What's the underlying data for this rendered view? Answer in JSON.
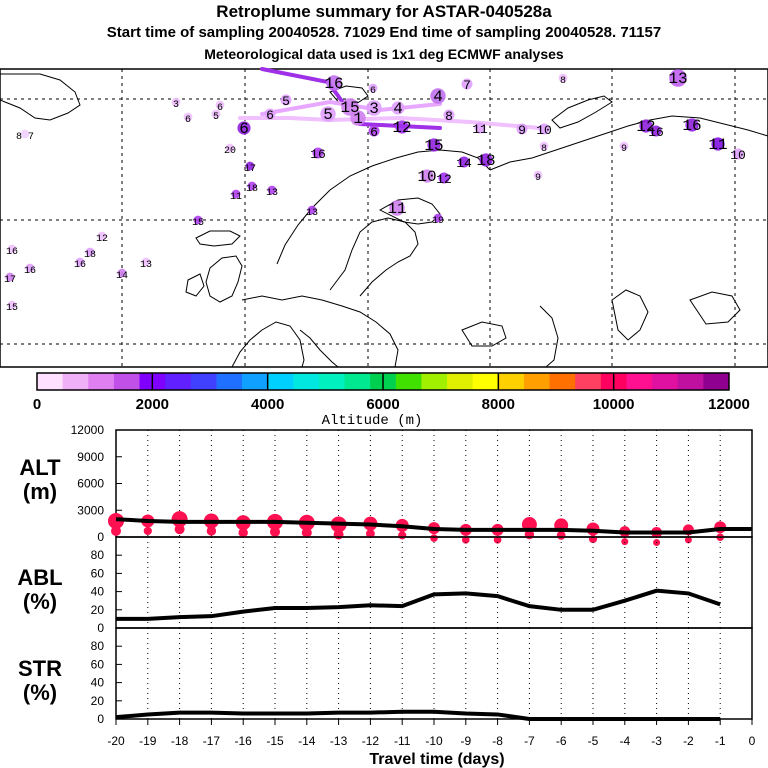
{
  "header": {
    "title": "Retroplume summary for ASTAR-040528a",
    "line2": "Start time of sampling 20040528. 71029     End time of sampling 20040528. 71157",
    "line3": "Meteorological data used is 1x1 deg ECMWF analyses"
  },
  "colorbar": {
    "ticks": [
      "0",
      "2000",
      "4000",
      "6000",
      "8000",
      "10000",
      "12000"
    ],
    "label": "Altitude (m)",
    "colors": [
      "#ffe0ff",
      "#f0b0f8",
      "#e080f0",
      "#c050e8",
      "#8000ff",
      "#6020ff",
      "#4040ff",
      "#2070ff",
      "#10a0ff",
      "#00d0ff",
      "#00e8e0",
      "#00f0c0",
      "#00e890",
      "#00d050",
      "#40e000",
      "#a0f000",
      "#e0f000",
      "#ffff00",
      "#ffd000",
      "#ffa000",
      "#ff7000",
      "#ff4060",
      "#ff0060",
      "#ff1090",
      "#e010a0",
      "#c010a0",
      "#900090"
    ]
  },
  "map_labels": [
    {
      "t": "16",
      "c": "#c070f0"
    },
    {
      "t": "6",
      "c": "#e0a0ff"
    },
    {
      "t": "4",
      "c": "#c070f0"
    },
    {
      "t": "7",
      "c": "#e0a0ff"
    },
    {
      "t": "8",
      "c": "#f0c0ff"
    },
    {
      "t": "13",
      "c": "#c060f0"
    },
    {
      "t": "3",
      "c": "#f0c0ff"
    },
    {
      "t": "5",
      "c": "#f0c0ff"
    },
    {
      "t": "6",
      "c": "#f0c0ff"
    },
    {
      "t": "5",
      "c": "#e0a0ff"
    },
    {
      "t": "15",
      "c": "#d080f0"
    },
    {
      "t": "3",
      "c": "#e0a0ff"
    },
    {
      "t": "4",
      "c": "#e0a0ff"
    },
    {
      "t": "6",
      "c": "#f0c0ff"
    },
    {
      "t": "6",
      "c": "#e0a0ff"
    },
    {
      "t": "5",
      "c": "#e0a0ff"
    },
    {
      "t": "1",
      "c": "#d080f0"
    },
    {
      "t": "8",
      "c": "#e0a0ff"
    },
    {
      "t": "8 7",
      "c": "#f0d0ff"
    },
    {
      "t": "6",
      "c": "#9020e0"
    },
    {
      "t": "12",
      "c": "#a030f0"
    },
    {
      "t": "11",
      "c": "#e0a0ff"
    },
    {
      "t": "9",
      "c": "#e0a0ff"
    },
    {
      "t": "10",
      "c": "#e0a0ff"
    },
    {
      "t": "8",
      "c": "#f0c0ff"
    },
    {
      "t": "12",
      "c": "#9020e0"
    },
    {
      "t": "16",
      "c": "#9020e0"
    },
    {
      "t": "16",
      "c": "#9020e0"
    },
    {
      "t": "9",
      "c": "#f0c0ff"
    },
    {
      "t": "11",
      "c": "#8010e0"
    },
    {
      "t": "10",
      "c": "#e0a0ff"
    },
    {
      "t": "20",
      "c": "#f0c0ff"
    },
    {
      "t": "16",
      "c": "#b040f0"
    },
    {
      "t": "15",
      "c": "#9020e0"
    },
    {
      "t": "6",
      "c": "#b040f0"
    },
    {
      "t": "14",
      "c": "#9020e0"
    },
    {
      "t": "18",
      "c": "#9020e0"
    },
    {
      "t": "17",
      "c": "#9020e0"
    },
    {
      "t": "10",
      "c": "#d080f0"
    },
    {
      "t": "12",
      "c": "#a030f0"
    },
    {
      "t": "9",
      "c": "#f0c0ff"
    },
    {
      "t": "11",
      "c": "#b040f0"
    },
    {
      "t": "18",
      "c": "#b040f0"
    },
    {
      "t": "13",
      "c": "#b040f0"
    },
    {
      "t": "13",
      "c": "#b040f0"
    },
    {
      "t": "11",
      "c": "#d080f0"
    },
    {
      "t": "19",
      "c": "#b040f0"
    },
    {
      "t": "15",
      "c": "#b040f0"
    },
    {
      "t": "12",
      "c": "#f0c0ff"
    },
    {
      "t": "18",
      "c": "#e0a0ff"
    },
    {
      "t": "16",
      "c": "#e0a0ff"
    },
    {
      "t": "16",
      "c": "#f0c0ff"
    },
    {
      "t": "13",
      "c": "#f0c0ff"
    },
    {
      "t": "16",
      "c": "#e0a0ff"
    },
    {
      "t": "14",
      "c": "#d080f0"
    },
    {
      "t": "17",
      "c": "#d080f0"
    },
    {
      "t": "15",
      "c": "#f0c0ff"
    }
  ],
  "chart_data": [
    {
      "type": "line",
      "name": "altitude",
      "ylabel": "ALT\n(m)",
      "ylim": [
        0,
        12000
      ],
      "yticks": [
        "12000",
        "9000",
        "6000",
        "3000",
        "0"
      ],
      "x": [
        -20,
        -19,
        -18,
        -17,
        -16,
        -15,
        -14,
        -13,
        -12,
        -11,
        -10,
        -9,
        -8,
        -7,
        -6,
        -5,
        -4,
        -3,
        -2,
        -1,
        0
      ],
      "values": [
        2000,
        1800,
        1700,
        1700,
        1700,
        1700,
        1600,
        1500,
        1400,
        1200,
        900,
        800,
        800,
        800,
        800,
        700,
        500,
        500,
        500,
        900,
        900
      ],
      "scatter": [
        {
          "x": -20,
          "y": 1800,
          "s": 1
        },
        {
          "x": -19,
          "y": 1800,
          "s": 0.7
        },
        {
          "x": -18,
          "y": 2000,
          "s": 1
        },
        {
          "x": -17,
          "y": 1800,
          "s": 0.9
        },
        {
          "x": -16,
          "y": 1600,
          "s": 0.9
        },
        {
          "x": -15,
          "y": 1700,
          "s": 1
        },
        {
          "x": -14,
          "y": 1600,
          "s": 1
        },
        {
          "x": -13,
          "y": 1400,
          "s": 1
        },
        {
          "x": -12,
          "y": 1500,
          "s": 0.8
        },
        {
          "x": -11,
          "y": 1300,
          "s": 0.7
        },
        {
          "x": -10,
          "y": 1000,
          "s": 0.6
        },
        {
          "x": -9,
          "y": 800,
          "s": 0.6
        },
        {
          "x": -8,
          "y": 800,
          "s": 0.6
        },
        {
          "x": -7,
          "y": 1400,
          "s": 0.9
        },
        {
          "x": -6,
          "y": 1300,
          "s": 0.8
        },
        {
          "x": -5,
          "y": 900,
          "s": 0.7
        },
        {
          "x": -4,
          "y": 600,
          "s": 0.5
        },
        {
          "x": -3,
          "y": 500,
          "s": 0.5
        },
        {
          "x": -2,
          "y": 800,
          "s": 0.5
        },
        {
          "x": -1,
          "y": 1100,
          "s": 0.6
        }
      ]
    },
    {
      "type": "line",
      "name": "abl",
      "ylabel": "ABL\n(%)",
      "ylim": [
        0,
        100
      ],
      "yticks": [
        "80",
        "60",
        "40",
        "20",
        "0"
      ],
      "x": [
        -20,
        -19,
        -18,
        -17,
        -16,
        -15,
        -14,
        -13,
        -12,
        -11,
        -10,
        -9,
        -8,
        -7,
        -6,
        -5,
        -4,
        -3,
        -2,
        -1
      ],
      "values": [
        10,
        10,
        12,
        13,
        18,
        22,
        22,
        23,
        25,
        24,
        37,
        38,
        35,
        24,
        20,
        20,
        30,
        41,
        38,
        26
      ]
    },
    {
      "type": "line",
      "name": "str",
      "ylabel": "STR\n(%)",
      "ylim": [
        0,
        100
      ],
      "yticks": [
        "80",
        "60",
        "40",
        "20",
        "0"
      ],
      "x": [
        -20,
        -19,
        -18,
        -17,
        -16,
        -15,
        -14,
        -13,
        -12,
        -11,
        -10,
        -9,
        -8,
        -7,
        -6,
        -5,
        -4,
        -3,
        -2,
        -1
      ],
      "values": [
        2,
        5,
        7,
        7,
        6,
        6,
        6,
        7,
        7,
        8,
        8,
        6,
        5,
        0,
        0,
        0,
        0,
        0,
        0,
        0
      ]
    }
  ],
  "xaxis": {
    "ticks": [
      "-20",
      "-19",
      "-18",
      "-17",
      "-16",
      "-15",
      "-14",
      "-13",
      "-12",
      "-11",
      "-10",
      "-9",
      "-8",
      "-7",
      "-6",
      "-5",
      "-4",
      "-3",
      "-2",
      "-1",
      "0"
    ],
    "label": "Travel time (days)"
  }
}
